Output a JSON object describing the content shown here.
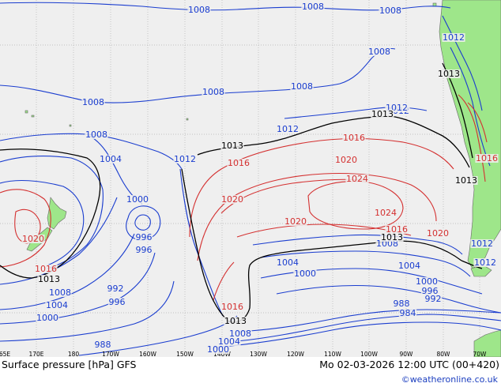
{
  "title": "Surface pressure [hPa] GFS",
  "valid_time": "Mo 02-03-2026 12:00 UTC (00+420)",
  "credit": "©weatheronline.co.uk",
  "colors": {
    "ocean": "#efefef",
    "land": "#9ee68a",
    "low_isobar": "#1a3dcf",
    "high_isobar": "#d43030",
    "standard_isobar": "#000000",
    "grid": "#b4b4b4"
  },
  "longitude_ticks": [
    "65E",
    "170E",
    "180",
    "170W",
    "160W",
    "150W",
    "140W",
    "130W",
    "120W",
    "110W",
    "100W",
    "90W",
    "80W",
    "70W"
  ],
  "isobar_labels": {
    "blue": [
      {
        "text": "1008"
      },
      {
        "text": "1008"
      },
      {
        "text": "1008"
      },
      {
        "text": "1008"
      },
      {
        "text": "1008"
      },
      {
        "text": "1008"
      },
      {
        "text": "1008"
      },
      {
        "text": "1008"
      },
      {
        "text": "1012"
      },
      {
        "text": "1012"
      },
      {
        "text": "1012"
      },
      {
        "text": "1012"
      },
      {
        "text": "1004"
      },
      {
        "text": "1000"
      },
      {
        "text": "996"
      },
      {
        "text": "996"
      },
      {
        "text": "992"
      },
      {
        "text": "996"
      },
      {
        "text": "988"
      },
      {
        "text": "1008"
      },
      {
        "text": "1004"
      },
      {
        "text": "1000"
      },
      {
        "text": "1008"
      },
      {
        "text": "1004"
      },
      {
        "text": "1000"
      },
      {
        "text": "1004"
      },
      {
        "text": "1000"
      },
      {
        "text": "1008"
      },
      {
        "text": "1004"
      },
      {
        "text": "1000"
      },
      {
        "text": "996"
      },
      {
        "text": "992"
      },
      {
        "text": "988"
      },
      {
        "text": "984"
      },
      {
        "text": "1012"
      },
      {
        "text": "1012"
      },
      {
        "text": "1012"
      }
    ],
    "red": [
      {
        "text": "1016"
      },
      {
        "text": "1016"
      },
      {
        "text": "1020"
      },
      {
        "text": "1020"
      },
      {
        "text": "1024"
      },
      {
        "text": "1024"
      },
      {
        "text": "1020"
      },
      {
        "text": "1016"
      },
      {
        "text": "1020"
      },
      {
        "text": "1016"
      },
      {
        "text": "1016"
      },
      {
        "text": "1020"
      },
      {
        "text": "1016"
      }
    ],
    "black": [
      {
        "text": "1013"
      },
      {
        "text": "1013"
      },
      {
        "text": "1013"
      },
      {
        "text": "1013"
      },
      {
        "text": "1013"
      },
      {
        "text": "1013"
      },
      {
        "text": "1013"
      }
    ]
  }
}
